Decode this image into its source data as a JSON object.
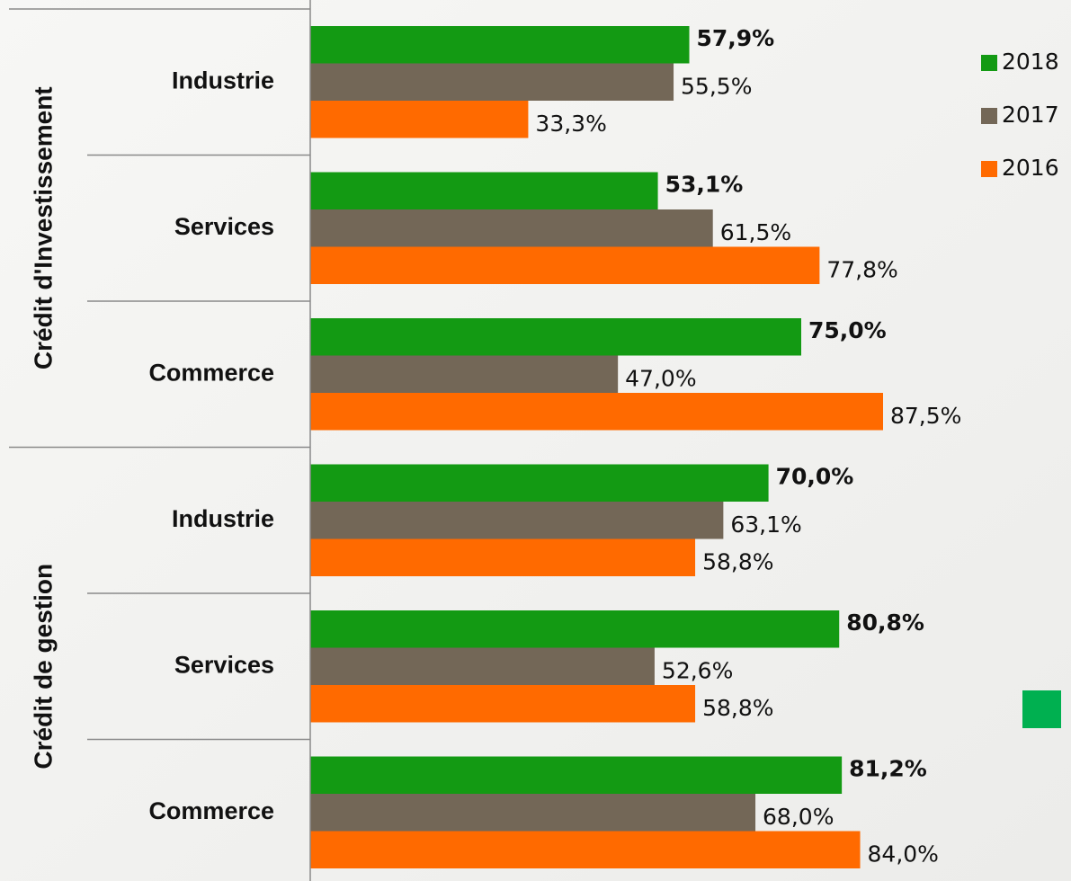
{
  "chart_data": {
    "type": "bar",
    "orientation": "horizontal",
    "groups": [
      {
        "label": "Crédit d'Investissement",
        "categories": [
          "Industrie",
          "Services",
          "Commerce"
        ]
      },
      {
        "label": "Crédit de gestion",
        "categories": [
          "Industrie",
          "Services",
          "Commerce"
        ]
      }
    ],
    "series": [
      {
        "name": "2018",
        "color": "#139a13",
        "values": [
          57.9,
          53.1,
          75.0,
          70.0,
          80.8,
          81.2
        ],
        "value_labels": [
          "57,9%",
          "53,1%",
          "75,0%",
          "70,0%",
          "80,8%",
          "81,2%"
        ]
      },
      {
        "name": "2017",
        "color": "#736757",
        "values": [
          55.5,
          61.5,
          47.0,
          63.1,
          52.6,
          68.0
        ],
        "value_labels": [
          "55,5%",
          "61,5%",
          "47,0%",
          "63,1%",
          "52,6%",
          "68,0%"
        ]
      },
      {
        "name": "2016",
        "color": "#ff6a00",
        "values": [
          33.3,
          77.8,
          87.5,
          58.8,
          58.8,
          84.0
        ],
        "value_labels": [
          "33,3%",
          "77,8%",
          "87,5%",
          "58,8%",
          "58,8%",
          "84,0%"
        ]
      }
    ],
    "xlim": [
      0,
      100
    ],
    "legend": "top-right"
  }
}
